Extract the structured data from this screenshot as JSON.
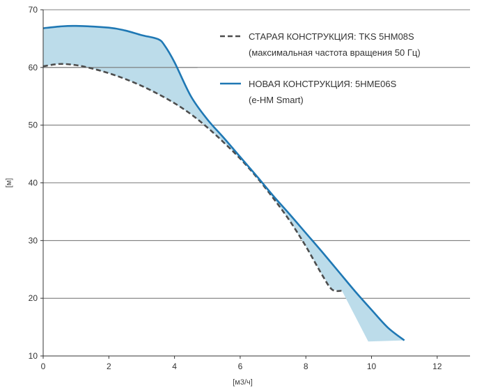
{
  "chart_data": {
    "type": "line",
    "xlabel": "[м3/ч]",
    "ylabel": "[м]",
    "xlim": [
      0,
      13
    ],
    "ylim": [
      10,
      70
    ],
    "x_ticks": [
      0,
      2,
      4,
      6,
      8,
      10,
      12
    ],
    "y_ticks": [
      10,
      20,
      30,
      40,
      50,
      60,
      70
    ],
    "grid": "horizontal",
    "legend_position": "top-right",
    "fill_color": "#bcdcea",
    "series": [
      {
        "name": "СТАРАЯ КОНСТРУКЦИЯ: TKS 5HM08S",
        "name_line2": "(максимальная частота вращения 50 Гц)",
        "style": "dashed",
        "color": "#4d4d4d",
        "points": [
          [
            0,
            60.2
          ],
          [
            0.5,
            60.6
          ],
          [
            1,
            60.4
          ],
          [
            1.5,
            59.8
          ],
          [
            2,
            59.0
          ],
          [
            2.5,
            58.0
          ],
          [
            3,
            56.8
          ],
          [
            3.5,
            55.4
          ],
          [
            4,
            53.8
          ],
          [
            4.5,
            51.9
          ],
          [
            5,
            49.6
          ],
          [
            5.5,
            47.0
          ],
          [
            6,
            44.2
          ],
          [
            6.5,
            41.0
          ],
          [
            7,
            37.4
          ],
          [
            7.5,
            33.5
          ],
          [
            8,
            29.0
          ],
          [
            8.5,
            24.0
          ],
          [
            8.8,
            21.5
          ],
          [
            9.1,
            21.3
          ]
        ]
      },
      {
        "name": "НОВАЯ КОНСТРУКЦИЯ: 5HME06S",
        "name_line2": "(e-HM Smart)",
        "style": "solid",
        "color": "#1f78b4",
        "points": [
          [
            0,
            66.8
          ],
          [
            0.5,
            67.1
          ],
          [
            1,
            67.2
          ],
          [
            2,
            66.9
          ],
          [
            2.5,
            66.4
          ],
          [
            3,
            65.6
          ],
          [
            3.5,
            64.9
          ],
          [
            3.7,
            63.8
          ],
          [
            4,
            60.9
          ],
          [
            4.5,
            55.0
          ],
          [
            5,
            51.0
          ],
          [
            5.5,
            47.8
          ],
          [
            6,
            44.5
          ],
          [
            6.5,
            41.2
          ],
          [
            7,
            37.8
          ],
          [
            7.5,
            34.6
          ],
          [
            8,
            31.3
          ],
          [
            8.5,
            28.0
          ],
          [
            9,
            24.6
          ],
          [
            9.5,
            21.2
          ],
          [
            10,
            18.0
          ],
          [
            10.5,
            14.9
          ],
          [
            11,
            12.7
          ]
        ]
      }
    ],
    "fill_upper_extension": [
      [
        9.9,
        12.5
      ],
      [
        11,
        12.7
      ]
    ],
    "reference_line": {
      "y": 60,
      "x_from": 0,
      "x_to": 4.7
    }
  }
}
